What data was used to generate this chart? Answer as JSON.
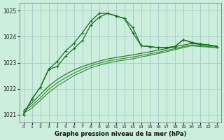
{
  "title": "Graphe pression niveau de la mer (hPa)",
  "background_color": "#cceedd",
  "grid_color": "#aacccc",
  "line_color_main": "#1a6b1a",
  "line_color_smooth1": "#2d8b2d",
  "line_color_smooth2": "#2d8b2d",
  "line_color_smooth3": "#1a6b1a",
  "xlim": [
    -0.5,
    23.5
  ],
  "ylim": [
    1020.7,
    1025.3
  ],
  "yticks": [
    1021,
    1022,
    1023,
    1024,
    1025
  ],
  "xticks": [
    0,
    1,
    2,
    3,
    4,
    5,
    6,
    7,
    8,
    9,
    10,
    11,
    12,
    13,
    14,
    15,
    16,
    17,
    18,
    19,
    20,
    21,
    22,
    23
  ],
  "series1": [
    1021.0,
    1021.6,
    1022.05,
    1022.75,
    1022.85,
    1023.25,
    1023.55,
    1023.85,
    1024.45,
    1024.75,
    1024.9,
    1024.8,
    1024.7,
    1024.35,
    1023.65,
    1023.62,
    1023.58,
    1023.58,
    1023.62,
    1023.88,
    1023.78,
    1023.72,
    1023.68,
    1023.62
  ],
  "series2": [
    1021.0,
    1021.6,
    1022.05,
    1022.75,
    1023.05,
    1023.45,
    1023.75,
    1024.15,
    1024.6,
    1024.9,
    1024.9,
    1024.8,
    1024.7,
    1024.15,
    1023.65,
    1023.62,
    1023.58,
    1023.58,
    1023.62,
    1023.88,
    1023.78,
    1023.72,
    1023.68,
    1023.62
  ],
  "smooth1": [
    1021.05,
    1021.25,
    1021.55,
    1021.85,
    1022.1,
    1022.3,
    1022.5,
    1022.65,
    1022.8,
    1022.9,
    1022.98,
    1023.05,
    1023.1,
    1023.15,
    1023.22,
    1023.28,
    1023.35,
    1023.42,
    1023.5,
    1023.58,
    1023.65,
    1023.62,
    1023.6,
    1023.58
  ],
  "smooth2": [
    1021.1,
    1021.35,
    1021.65,
    1021.98,
    1022.22,
    1022.42,
    1022.6,
    1022.75,
    1022.88,
    1022.98,
    1023.06,
    1023.12,
    1023.17,
    1023.22,
    1023.28,
    1023.34,
    1023.4,
    1023.47,
    1023.54,
    1023.62,
    1023.68,
    1023.65,
    1023.62,
    1023.6
  ],
  "smooth3": [
    1021.15,
    1021.45,
    1021.78,
    1022.1,
    1022.35,
    1022.55,
    1022.72,
    1022.85,
    1022.96,
    1023.06,
    1023.14,
    1023.2,
    1023.25,
    1023.3,
    1023.36,
    1023.42,
    1023.48,
    1023.54,
    1023.61,
    1023.68,
    1023.74,
    1023.7,
    1023.67,
    1023.64
  ]
}
